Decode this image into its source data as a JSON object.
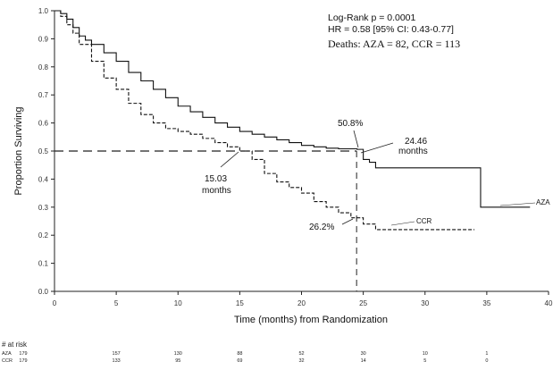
{
  "chart_data": {
    "type": "line",
    "title": "",
    "xlabel": "Time (months) from Randomization",
    "ylabel": "Proportion Surviving",
    "xlim": [
      0,
      40
    ],
    "ylim": [
      0,
      1.0
    ],
    "xticks": [
      "0",
      "5",
      "10",
      "15",
      "20",
      "25",
      "30",
      "35",
      "40"
    ],
    "yticks": [
      "0.0",
      "0.1",
      "0.2",
      "0.3",
      "0.4",
      "0.5",
      "0.6",
      "0.7",
      "0.8",
      "0.9",
      "1.0"
    ],
    "stats": {
      "logrank": "Log-Rank p = 0.0001",
      "hr": "HR = 0.58 [95% CI: 0.43-0.77]",
      "deaths": "Deaths: AZA = 82, CCR = 113"
    },
    "series": [
      {
        "name": "AZA",
        "line_style": "solid",
        "x": [
          0,
          0.5,
          1,
          1.5,
          2,
          2.5,
          3,
          4,
          5,
          6,
          7,
          8,
          9,
          10,
          11,
          12,
          13,
          14,
          15,
          16,
          17,
          18,
          19,
          20,
          21,
          22,
          23,
          24.5,
          25,
          25.5,
          26,
          30,
          34.5,
          34.5,
          35,
          38.5
        ],
        "y": [
          1.0,
          0.99,
          0.97,
          0.94,
          0.91,
          0.895,
          0.88,
          0.85,
          0.82,
          0.78,
          0.75,
          0.72,
          0.69,
          0.66,
          0.64,
          0.62,
          0.6,
          0.585,
          0.57,
          0.56,
          0.55,
          0.54,
          0.53,
          0.52,
          0.515,
          0.51,
          0.508,
          0.506,
          0.47,
          0.46,
          0.44,
          0.44,
          0.44,
          0.3,
          0.3,
          0.3
        ]
      },
      {
        "name": "CCR",
        "line_style": "dashed",
        "x": [
          0,
          0.5,
          1,
          1.5,
          2,
          3,
          4,
          5,
          6,
          7,
          8,
          9,
          10,
          11,
          12,
          13,
          14,
          15,
          16,
          17,
          18,
          19,
          20,
          21,
          22,
          23,
          24,
          25,
          26,
          30,
          34
        ],
        "y": [
          1.0,
          0.98,
          0.95,
          0.92,
          0.88,
          0.82,
          0.76,
          0.72,
          0.67,
          0.63,
          0.6,
          0.58,
          0.57,
          0.56,
          0.545,
          0.53,
          0.515,
          0.5,
          0.47,
          0.42,
          0.39,
          0.37,
          0.35,
          0.32,
          0.3,
          0.28,
          0.262,
          0.24,
          0.22,
          0.22,
          0.22
        ]
      }
    ],
    "reference_lines": {
      "median_y": 0.5,
      "median_x_ccr": 15.03,
      "median_x_aza": 24.46
    },
    "annotations": {
      "aza_pct": "50.8%",
      "aza_median": "24.46",
      "aza_median_unit": "months",
      "ccr_median": "15.03",
      "ccr_median_unit": "months",
      "ccr_pct": "26.2%",
      "aza_label": "AZA",
      "ccr_label": "CCR"
    },
    "at_risk": {
      "title": "# at risk",
      "times": [
        0,
        5,
        10,
        15,
        20,
        25,
        30,
        35
      ],
      "rows": [
        {
          "label": "AZA",
          "counts": [
            "179",
            "157",
            "130",
            "88",
            "52",
            "30",
            "10",
            "1"
          ]
        },
        {
          "label": "CCR",
          "counts": [
            "179",
            "133",
            "95",
            "69",
            "32",
            "14",
            "5",
            "0"
          ]
        }
      ]
    },
    "grid": false,
    "legend": "none"
  }
}
